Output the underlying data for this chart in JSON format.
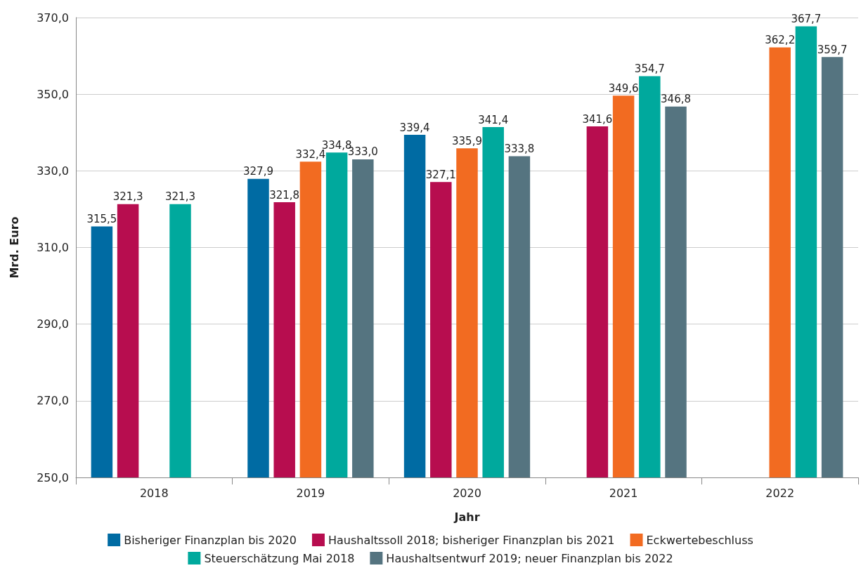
{
  "chart_data": {
    "type": "bar",
    "xlabel": "Jahr",
    "ylabel": "Mrd. Euro",
    "categories": [
      "2018",
      "2019",
      "2020",
      "2021",
      "2022"
    ],
    "ylim": [
      250,
      370
    ],
    "yticks": [
      {
        "value": 250,
        "label": "250,0"
      },
      {
        "value": 270,
        "label": "270,0"
      },
      {
        "value": 290,
        "label": "290,0"
      },
      {
        "value": 310,
        "label": "310,0"
      },
      {
        "value": 330,
        "label": "330,0"
      },
      {
        "value": 350,
        "label": "350,0"
      },
      {
        "value": 370,
        "label": "370,0"
      }
    ],
    "grid": "y",
    "legend": "bottom",
    "series": [
      {
        "name": "Bisheriger Finanzplan bis 2020",
        "color": "#006ba3",
        "values": [
          315.5,
          327.9,
          339.4,
          null,
          null
        ],
        "value_labels": [
          "315,5",
          "327,9",
          "339,4",
          null,
          null
        ]
      },
      {
        "name": "Haushaltssoll 2018; bisheriger Finanzplan bis 2021",
        "color": "#b70d4f",
        "values": [
          321.3,
          321.8,
          327.1,
          341.6,
          null
        ],
        "value_labels": [
          "321,3",
          "321,8",
          "327,1",
          "341,6",
          null
        ]
      },
      {
        "name": "Eckwertebeschluss",
        "color": "#f26b21",
        "values": [
          null,
          332.4,
          335.9,
          349.6,
          362.2
        ],
        "value_labels": [
          null,
          "332,4",
          "335,9",
          "349,6",
          "362,2"
        ]
      },
      {
        "name": "Steuerschätzung Mai 2018",
        "color": "#00a99d",
        "values": [
          321.3,
          334.8,
          341.4,
          354.7,
          367.7
        ],
        "value_labels": [
          "321,3",
          "334,8",
          "341,4",
          "354,7",
          "367,7"
        ]
      },
      {
        "name": "Haushaltsentwurf 2019; neuer Finanzplan bis 2022",
        "color": "#557480",
        "values": [
          null,
          333.0,
          333.8,
          346.8,
          359.7
        ],
        "value_labels": [
          null,
          "333,0",
          "333,8",
          "346,8",
          "359,7"
        ]
      }
    ]
  }
}
